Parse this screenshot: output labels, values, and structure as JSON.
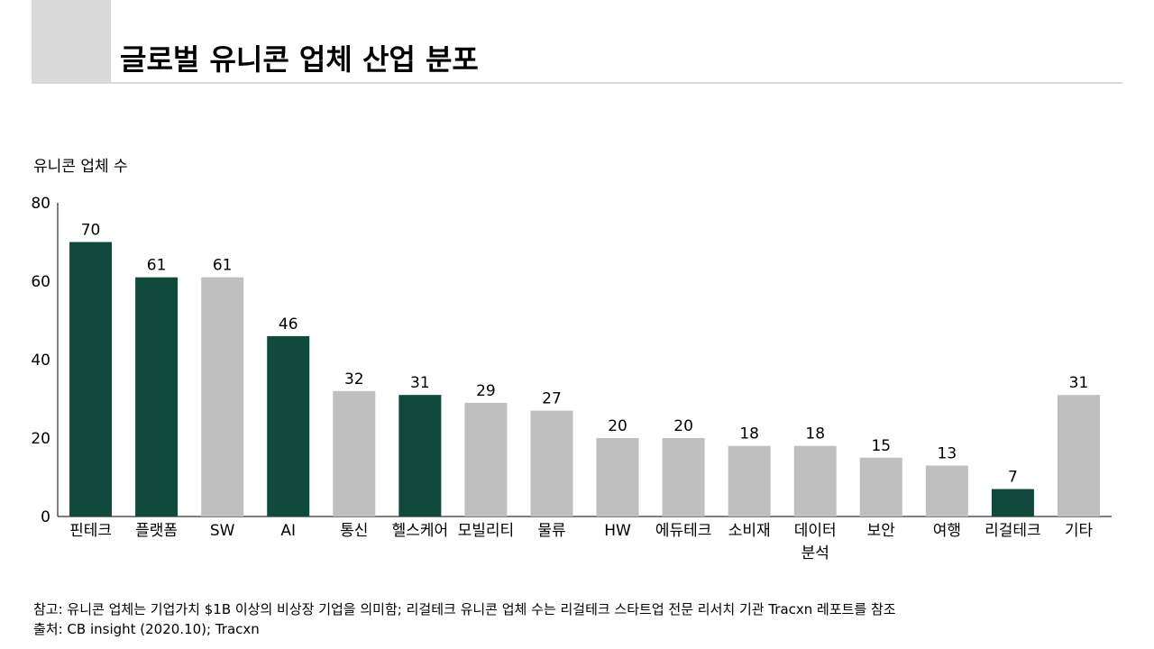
{
  "page_title": "글로벌 유니콘 업체 산업 분포",
  "colors": {
    "highlight": "#114a3d",
    "default": "#bfbfbf",
    "axis": "#000000",
    "title_block": "#d9d9d9"
  },
  "chart_data": {
    "type": "bar",
    "title": "글로벌 유니콘 업체 산업 분포",
    "ylabel": "유니콘 업체 수",
    "xlabel": "",
    "ylim": [
      0,
      80
    ],
    "yticks": [
      0,
      20,
      40,
      60,
      80
    ],
    "grid": false,
    "categories": [
      [
        "핀테크"
      ],
      [
        "플랫폼"
      ],
      [
        "SW"
      ],
      [
        "AI"
      ],
      [
        "통신"
      ],
      [
        "헬스케어"
      ],
      [
        "모빌리티"
      ],
      [
        "물류"
      ],
      [
        "HW"
      ],
      [
        "에듀테크"
      ],
      [
        "소비재"
      ],
      [
        "데이터",
        "분석"
      ],
      [
        "보안"
      ],
      [
        "여행"
      ],
      [
        "리걸테크"
      ],
      [
        "기타"
      ]
    ],
    "values": [
      70,
      61,
      61,
      46,
      32,
      31,
      29,
      27,
      20,
      20,
      18,
      18,
      15,
      13,
      7,
      31
    ],
    "highlighted": [
      true,
      true,
      false,
      true,
      false,
      true,
      false,
      false,
      false,
      false,
      false,
      false,
      false,
      false,
      true,
      false
    ]
  },
  "footnotes": {
    "note": "참고:  유니콘 업체는 기업가치 $1B 이상의 비상장 기업을 의미함; 리걸테크 유니콘 업체 수는 리걸테크 스타트업 전문 리서치 기관 Tracxn  레포트를 참조",
    "source": "출처:  CB insight  (2020.10);  Tracxn"
  }
}
